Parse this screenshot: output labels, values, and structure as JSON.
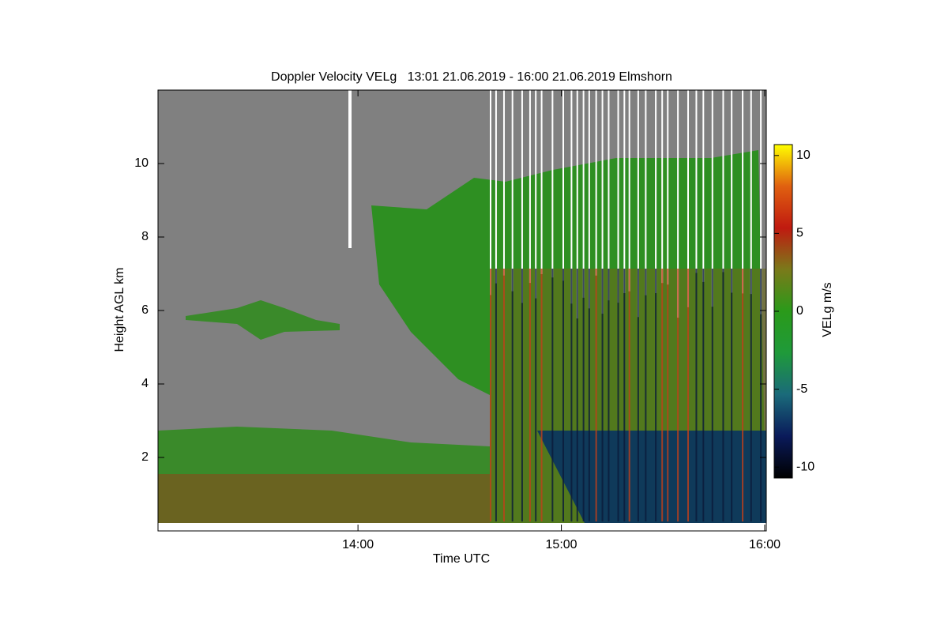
{
  "chart_data": {
    "type": "heatmap",
    "title": "Doppler Velocity VELg   13:01 21.06.2019 - 16:00 21.06.2019 Elmshorn",
    "x_label": "Time UTC",
    "y_label": "Height AGL km",
    "colorbar_label": "VELg m/s",
    "xlim": [
      13.0167,
      16.0
    ],
    "xticks": [
      {
        "value": 14,
        "label": "14:00"
      },
      {
        "value": 15,
        "label": "15:00"
      },
      {
        "value": 16,
        "label": "16:00"
      }
    ],
    "ylim": [
      0,
      12
    ],
    "yticks": [
      2,
      4,
      6,
      8,
      10
    ],
    "colorbar_lim": [
      -10.7,
      10.7
    ],
    "colorbar_ticks": [
      -10,
      -5,
      0,
      5,
      10
    ],
    "colormap": [
      "#000000",
      "#0a1a5a",
      "#1a6a7a",
      "#1f9a3a",
      "#2a9a1a",
      "#7a7a1a",
      "#c01a10",
      "#e06010",
      "#ffff00"
    ]
  }
}
